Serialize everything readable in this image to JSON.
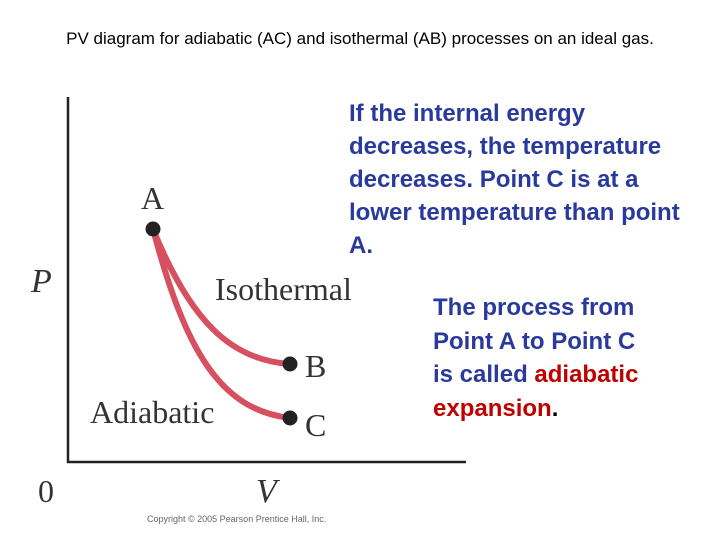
{
  "header": {
    "title": "PV diagram for adiabatic (AC) and isothermal (AB) processes on an ideal gas."
  },
  "diagram": {
    "y_axis_label": "P",
    "x_axis_label": "V",
    "origin_label": "0",
    "points": [
      {
        "label": "A"
      },
      {
        "label": "B"
      },
      {
        "label": "C"
      }
    ],
    "curves": [
      {
        "label": "Isothermal"
      },
      {
        "label": "Adiabatic"
      }
    ],
    "credit": "Copyright © 2005 Pearson Prentice Hall, Inc."
  },
  "text": {
    "paragraph_1": "If the internal energy decreases, the temperature decreases. Point C is at a lower temperature than point A.",
    "paragraph_2": {
      "lead": "The process from Point A to Point C is called ",
      "highlight": "adiabatic expansion",
      "end": "."
    }
  }
}
